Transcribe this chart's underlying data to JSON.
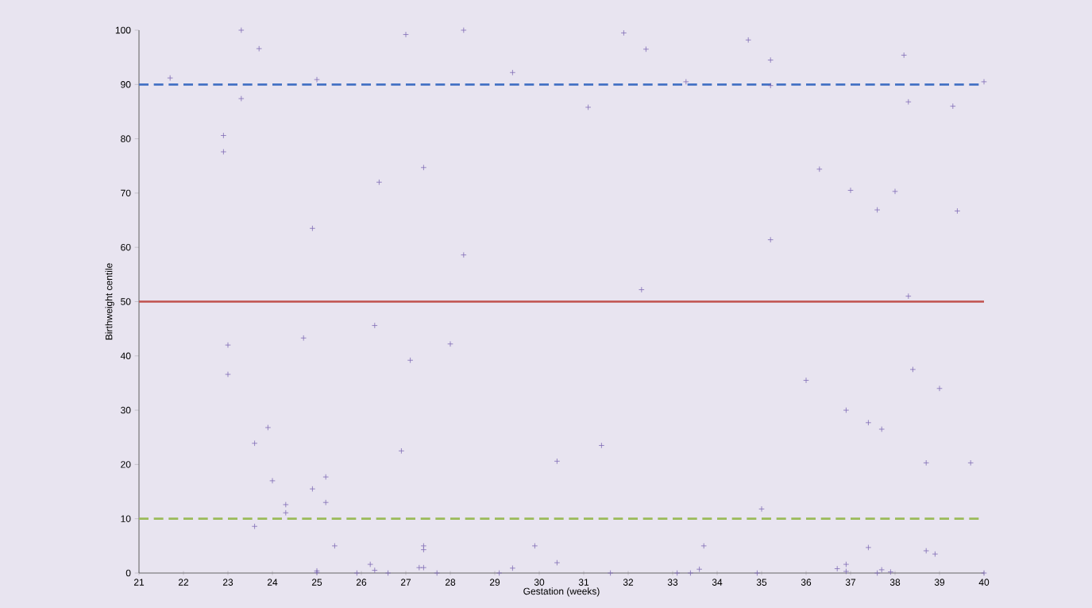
{
  "chart_data": {
    "type": "scatter",
    "xlabel": "Gestation (weeks)",
    "ylabel": "Birthweight centile",
    "xlim": [
      21,
      40
    ],
    "xticks": [
      21,
      22,
      23,
      24,
      25,
      26,
      27,
      28,
      29,
      30,
      31,
      32,
      33,
      34,
      35,
      36,
      37,
      38,
      39,
      40
    ],
    "ylim": [
      0,
      100
    ],
    "yticks": [
      0,
      10,
      20,
      30,
      40,
      50,
      60,
      70,
      80,
      90,
      100
    ],
    "grid": false,
    "marker": "cross",
    "x": [
      21.7,
      22.9,
      22.9,
      23.3,
      23.3,
      23.7,
      23.0,
      23.0,
      23.6,
      23.9,
      24.0,
      23.6,
      24.3,
      24.3,
      24.7,
      24.9,
      25.0,
      24.9,
      25.2,
      25.2,
      25.0,
      25.0,
      25.4,
      25.9,
      26.2,
      26.3,
      26.3,
      26.4,
      26.6,
      26.9,
      27.0,
      27.1,
      27.3,
      27.4,
      27.4,
      27.4,
      27.4,
      27.7,
      28.0,
      28.3,
      28.3,
      29.1,
      29.4,
      29.4,
      29.9,
      30.4,
      30.4,
      31.1,
      31.4,
      31.6,
      31.9,
      32.3,
      32.4,
      33.1,
      33.3,
      33.4,
      33.6,
      33.7,
      34.7,
      34.9,
      35.0,
      35.2,
      35.2,
      35.2,
      36.0,
      36.3,
      36.7,
      36.9,
      36.9,
      36.9,
      37.0,
      37.4,
      37.4,
      37.6,
      37.6,
      37.7,
      37.7,
      37.9,
      38.0,
      38.2,
      38.3,
      38.3,
      38.4,
      38.7,
      38.7,
      38.9,
      39.0,
      39.3,
      39.4,
      39.7,
      40.0,
      40.0
    ],
    "series": [
      {
        "color": "#7f6bb5",
        "values": [
          91.2,
          80.6,
          77.6,
          100,
          87.4,
          96.6,
          42,
          36.6,
          23.9,
          26.8,
          17,
          8.6,
          12.6,
          11.1,
          43.3,
          63.5,
          90.9,
          15.5,
          17.7,
          13.0,
          0.4,
          0.1,
          5.0,
          0,
          1.6,
          0.5,
          45.6,
          72,
          0,
          22.5,
          99.2,
          39.2,
          1.0,
          74.7,
          5.0,
          4.3,
          1.0,
          0,
          42.2,
          100,
          58.6,
          0,
          92.2,
          0.9,
          5,
          20.6,
          1.9,
          85.8,
          23.5,
          0,
          99.5,
          52.2,
          96.5,
          0,
          90.5,
          0,
          0.7,
          5,
          98.2,
          0,
          11.8,
          94.5,
          89.8,
          61.4,
          35.5,
          74.4,
          0.8,
          30,
          1.6,
          0.3,
          70.5,
          27.7,
          4.7,
          0,
          66.9,
          26.5,
          0.6,
          0.2,
          70.3,
          95.4,
          86.8,
          51.0,
          37.5,
          20.3,
          4.1,
          3.5,
          34,
          86,
          66.7,
          20.3,
          90.5,
          0
        ]
      }
    ],
    "ref_lines": [
      {
        "axis": "y",
        "value": 90,
        "color": "#4472c4",
        "line_style": "dashed"
      },
      {
        "axis": "y",
        "value": 50,
        "color": "#c0504d",
        "line_style": "solid"
      },
      {
        "axis": "y",
        "value": 10,
        "color": "#9bbb59",
        "line_style": "dashed"
      }
    ]
  }
}
